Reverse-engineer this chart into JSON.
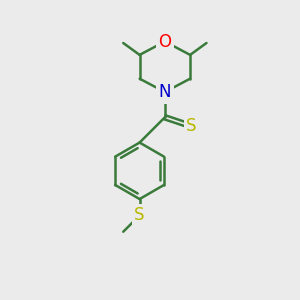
{
  "bg_color": "#ebebeb",
  "bond_color": "#3a7a3a",
  "atom_colors": {
    "O": "#ff0000",
    "N": "#0000cc",
    "S": "#b8b800",
    "C": "#3a7a3a"
  },
  "bond_width": 1.8,
  "font_size": 12,
  "methyl_font_size": 0,
  "figsize": [
    3.0,
    3.0
  ],
  "dpi": 100,
  "xlim": [
    0,
    10
  ],
  "ylim": [
    0,
    10
  ]
}
